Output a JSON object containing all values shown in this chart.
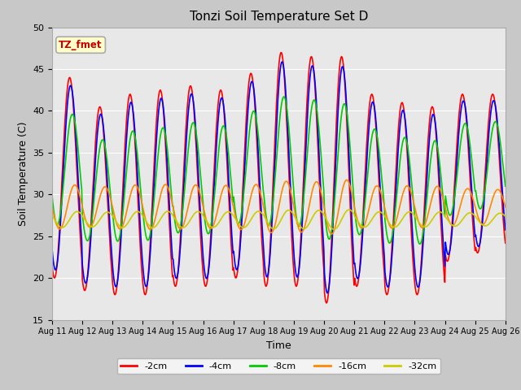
{
  "title": "Tonzi Soil Temperature Set D",
  "xlabel": "Time",
  "ylabel": "Soil Temperature (C)",
  "ylim": [
    15,
    50
  ],
  "yticks": [
    15,
    20,
    25,
    30,
    35,
    40,
    45,
    50
  ],
  "xtick_labels": [
    "Aug 11",
    "Aug 12",
    "Aug 13",
    "Aug 14",
    "Aug 15",
    "Aug 16",
    "Aug 17",
    "Aug 18",
    "Aug 19",
    "Aug 20",
    "Aug 21",
    "Aug 22",
    "Aug 23",
    "Aug 24",
    "Aug 25",
    "Aug 26"
  ],
  "annotation_text": "TZ_fmet",
  "annotation_color": "#cc0000",
  "annotation_bg": "#ffffcc",
  "annotation_border": "#aaaaaa",
  "series": [
    {
      "label": "-2cm",
      "color": "#ff0000",
      "linewidth": 1.2
    },
    {
      "label": "-4cm",
      "color": "#0000ff",
      "linewidth": 1.2
    },
    {
      "label": "-8cm",
      "color": "#00cc00",
      "linewidth": 1.2
    },
    {
      "label": "-16cm",
      "color": "#ff8800",
      "linewidth": 1.2
    },
    {
      "label": "-32cm",
      "color": "#cccc00",
      "linewidth": 1.2
    }
  ],
  "fig_bg": "#c8c8c8",
  "plot_bg": "#e8e8e8"
}
